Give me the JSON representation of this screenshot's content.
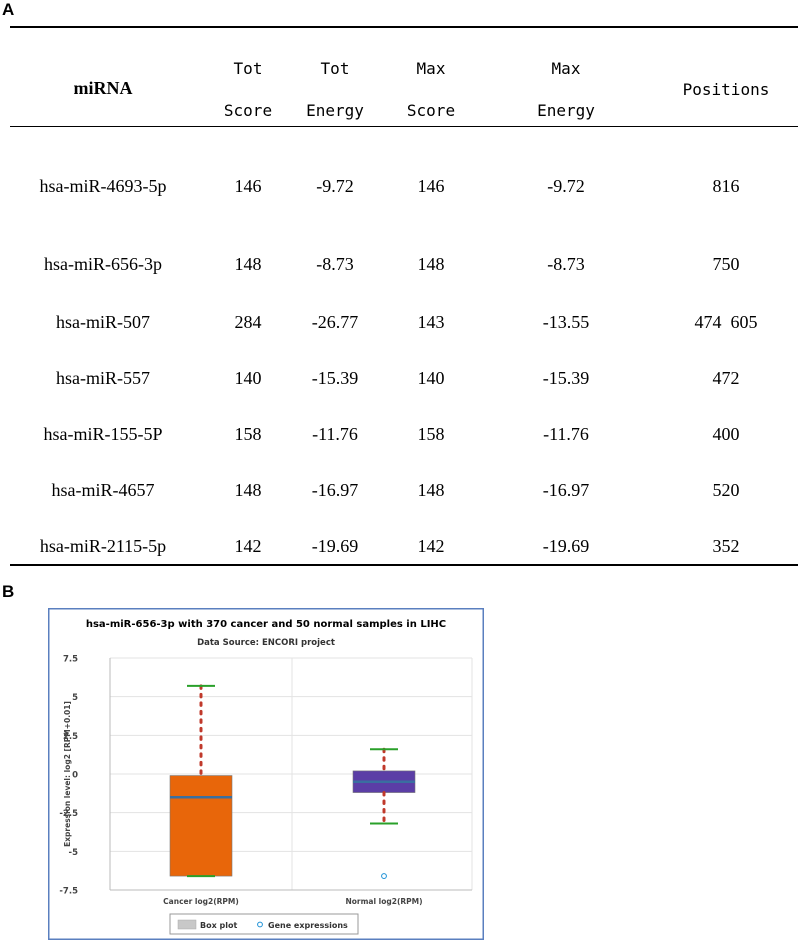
{
  "panel_labels": {
    "a": "A",
    "b": "B"
  },
  "table": {
    "headers": [
      {
        "line1": "miRNA",
        "line2": ""
      },
      {
        "line1": "Tot",
        "line2": "Score"
      },
      {
        "line1": "Tot",
        "line2": "Energy"
      },
      {
        "line1": "Max",
        "line2": "Score"
      },
      {
        "line1": "Max",
        "line2": "Energy"
      },
      {
        "line1": "Positions",
        "line2": ""
      }
    ],
    "rows": [
      [
        "hsa-miR-4693-5p",
        "146",
        "-9.72",
        "146",
        "-9.72",
        "816"
      ],
      [
        "hsa-miR-656-3p",
        "148",
        "-8.73",
        "148",
        "-8.73",
        "750"
      ],
      [
        "hsa-miR-507",
        "284",
        "-26.77",
        "143",
        "-13.55",
        "474  605"
      ],
      [
        "hsa-miR-557",
        "140",
        "-15.39",
        "140",
        "-15.39",
        "472"
      ],
      [
        "hsa-miR-155-5P",
        "158",
        "-11.76",
        "158",
        "-11.76",
        "400"
      ],
      [
        "hsa-miR-4657",
        "148",
        "-16.97",
        "148",
        "-16.97",
        "520"
      ],
      [
        "hsa-miR-2115-5p",
        "142",
        "-19.69",
        "142",
        "-19.69",
        "352"
      ]
    ]
  },
  "chart_data": {
    "type": "box",
    "title": "hsa-miR-656-3p with 370 cancer and 50 normal samples in LIHC",
    "subtitle": "Data Source: ENCORI project",
    "ylabel": "Expression level: log2 [RPM+0.01]",
    "ylim": [
      -7.5,
      7.5
    ],
    "yticks": [
      7.5,
      5,
      2.5,
      0,
      -2.5,
      -5,
      -7.5
    ],
    "ytick_labels": [
      "7.5",
      "5",
      "2.5",
      "0",
      "-2.5",
      "-5",
      "-7.5"
    ],
    "categories": [
      "Cancer log2(RPM)",
      "Normal log2(RPM)"
    ],
    "boxes": [
      {
        "name": "Cancer log2(RPM)",
        "whisker_low": -6.6,
        "q1": -6.6,
        "median": -1.5,
        "q3": -0.1,
        "whisker_high": 5.7,
        "color": "#e8660a",
        "outliers": []
      },
      {
        "name": "Normal log2(RPM)",
        "whisker_low": -3.2,
        "q1": -1.2,
        "median": -0.5,
        "q3": 0.2,
        "whisker_high": 1.6,
        "color": "#5b3ea6",
        "outliers": [
          -6.6
        ]
      }
    ],
    "legend": [
      {
        "label": "Box plot",
        "marker": "box"
      },
      {
        "label": "Gene expressions",
        "marker": "circle"
      }
    ],
    "colors": {
      "frame": "#5a7fbf",
      "whisker_cap": "#2aa02a",
      "whisker_line": "#c0392b",
      "median": "#3a6fa0",
      "outlier": "#1a8fd6"
    }
  }
}
